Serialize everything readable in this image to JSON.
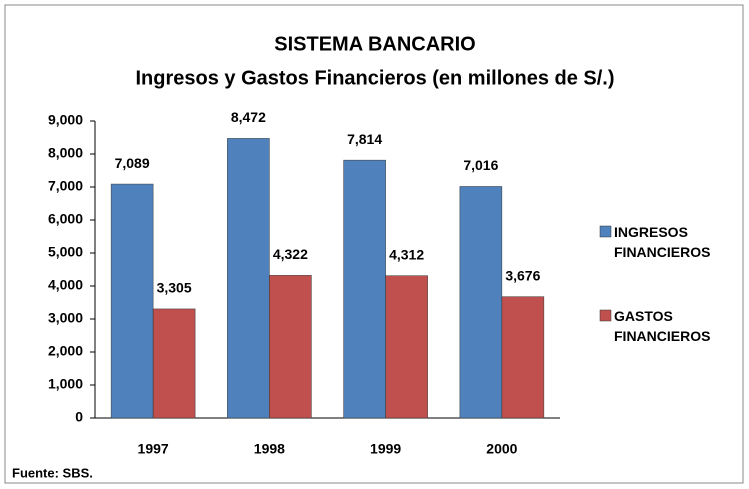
{
  "chart_data": {
    "type": "bar",
    "title": "SISTEMA BANCARIO",
    "subtitle": "Ingresos y Gastos Financieros (en millones de S/.)",
    "source": "Fuente: SBS.",
    "categories": [
      "1997",
      "1998",
      "1999",
      "2000"
    ],
    "series": [
      {
        "name": "INGRESOS FINANCIEROS",
        "color": "#4f81bd",
        "values": [
          7089,
          8472,
          7814,
          7016
        ],
        "value_labels": [
          "7,089",
          "8,472",
          "7,814",
          "7,016"
        ]
      },
      {
        "name": "GASTOS FINANCIEROS",
        "color": "#c0504d",
        "values": [
          3305,
          4322,
          4312,
          3676
        ],
        "value_labels": [
          "3,305",
          "4,322",
          "4,312",
          "3,676"
        ]
      }
    ],
    "ylim": [
      0,
      9000
    ],
    "yticks": [
      0,
      {
        "value": 1000,
        "label": "1,000"
      },
      {
        "value": 2000,
        "label": "2,000"
      },
      {
        "value": 3000,
        "label": "3,000"
      },
      {
        "value": 4000,
        "label": "4,000"
      },
      {
        "value": 5000,
        "label": "5,000"
      },
      {
        "value": 6000,
        "label": "6,000"
      },
      {
        "value": 7000,
        "label": "7,000"
      },
      {
        "value": 8000,
        "label": "8,000"
      },
      {
        "value": 9000,
        "label": "9,000"
      }
    ],
    "legend": "right",
    "grid": false
  }
}
